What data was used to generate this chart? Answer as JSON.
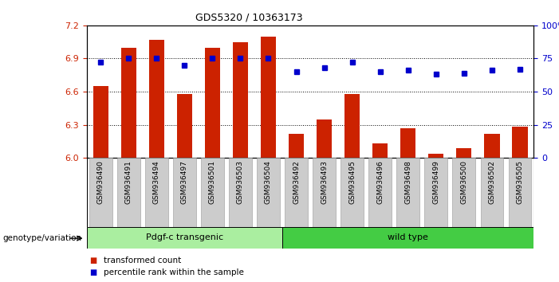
{
  "title": "GDS5320 / 10363173",
  "categories": [
    "GSM936490",
    "GSM936491",
    "GSM936494",
    "GSM936497",
    "GSM936501",
    "GSM936503",
    "GSM936504",
    "GSM936492",
    "GSM936493",
    "GSM936495",
    "GSM936496",
    "GSM936498",
    "GSM936499",
    "GSM936500",
    "GSM936502",
    "GSM936505"
  ],
  "bar_values": [
    6.65,
    7.0,
    7.07,
    6.58,
    7.0,
    7.05,
    7.1,
    6.22,
    6.35,
    6.58,
    6.13,
    6.27,
    6.04,
    6.09,
    6.22,
    6.28
  ],
  "dot_values": [
    72,
    75,
    75,
    70,
    75,
    75,
    75,
    65,
    68,
    72,
    65,
    66,
    63,
    64,
    66,
    67
  ],
  "bar_base": 6.0,
  "ylim_left": [
    6.0,
    7.2
  ],
  "ylim_right": [
    0,
    100
  ],
  "yticks_left": [
    6.0,
    6.3,
    6.6,
    6.9,
    7.2
  ],
  "yticks_right": [
    0,
    25,
    50,
    75,
    100
  ],
  "bar_color": "#cc2200",
  "dot_color": "#0000cc",
  "grid_color": "#000000",
  "bg_color": "#ffffff",
  "plot_bg": "#ffffff",
  "tick_color_left": "#cc2200",
  "tick_color_right": "#0000cc",
  "group1_label": "Pdgf-c transgenic",
  "group1_color": "#aaeea0",
  "group2_label": "wild type",
  "group2_color": "#44cc44",
  "group1_count": 7,
  "group2_count": 9,
  "xticklabel_bg": "#cccccc",
  "legend_items": [
    "transformed count",
    "percentile rank within the sample"
  ],
  "genotype_label": "genotype/variation"
}
